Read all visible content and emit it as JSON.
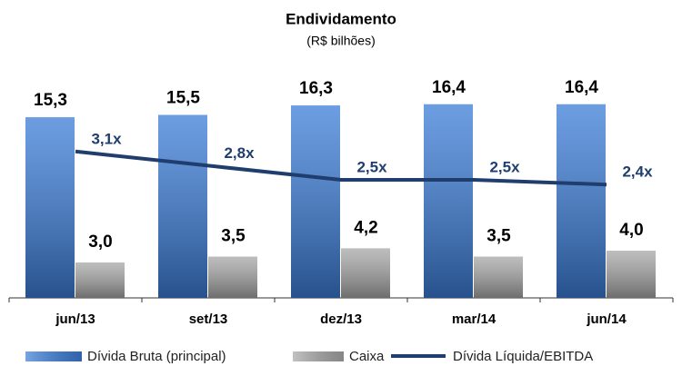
{
  "chart_data": {
    "type": "bar_line",
    "title": "Endividamento",
    "subtitle": "(R$ bilhões)",
    "categories": [
      "jun/13",
      "set/13",
      "dez/13",
      "mar/14",
      "jun/14"
    ],
    "series": [
      {
        "name": "Dívida Bruta (principal)",
        "color": "#3b7dd8",
        "type": "bar",
        "values": [
          15.3,
          15.5,
          16.3,
          16.4,
          16.4
        ],
        "value_labels": [
          "15,3",
          "15,5",
          "16,3",
          "16,4",
          "16,4"
        ]
      },
      {
        "name": "Caixa",
        "color": "#a8a8a8",
        "type": "bar",
        "values": [
          3.0,
          3.5,
          4.2,
          3.5,
          4.0
        ],
        "value_labels": [
          "3,0",
          "3,5",
          "4,2",
          "3,5",
          "4,0"
        ]
      },
      {
        "name": "Dívida Líquida/EBITDA",
        "color": "#1f3e6e",
        "type": "line",
        "axis": "y2",
        "values": [
          3.1,
          2.8,
          2.5,
          2.5,
          2.4
        ],
        "value_labels": [
          "3,1x",
          "2,8x",
          "2,5x",
          "2,5x",
          "2,4x"
        ]
      }
    ],
    "ylim": [
      0,
      18
    ],
    "y2lim": [
      0,
      4.5
    ],
    "legend": "bottom"
  }
}
